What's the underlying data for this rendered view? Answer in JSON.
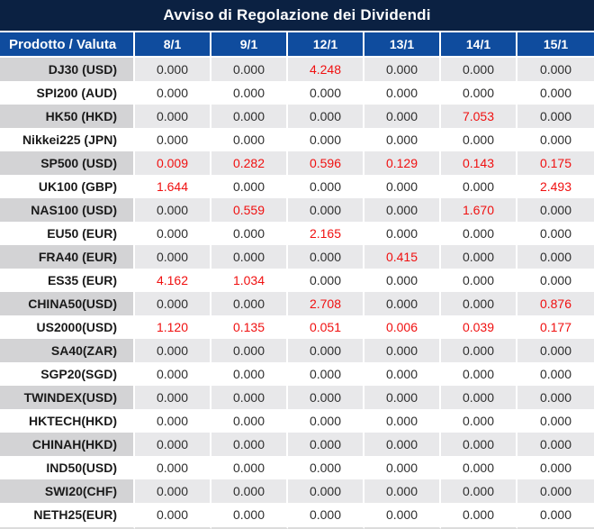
{
  "title": "Avviso di Regolazione dei Dividendi",
  "table": {
    "product_header": "Prodotto / Valuta",
    "date_headers": [
      "8/1",
      "9/1",
      "12/1",
      "13/1",
      "14/1",
      "15/1"
    ],
    "rows": [
      {
        "product": "DJ30 (USD)",
        "values": [
          "0.000",
          "0.000",
          "4.248",
          "0.000",
          "0.000",
          "0.000"
        ],
        "red": [
          false,
          false,
          true,
          false,
          false,
          false
        ]
      },
      {
        "product": "SPI200 (AUD)",
        "values": [
          "0.000",
          "0.000",
          "0.000",
          "0.000",
          "0.000",
          "0.000"
        ],
        "red": [
          false,
          false,
          false,
          false,
          false,
          false
        ]
      },
      {
        "product": "HK50 (HKD)",
        "values": [
          "0.000",
          "0.000",
          "0.000",
          "0.000",
          "7.053",
          "0.000"
        ],
        "red": [
          false,
          false,
          false,
          false,
          true,
          false
        ]
      },
      {
        "product": "Nikkei225 (JPN)",
        "values": [
          "0.000",
          "0.000",
          "0.000",
          "0.000",
          "0.000",
          "0.000"
        ],
        "red": [
          false,
          false,
          false,
          false,
          false,
          false
        ]
      },
      {
        "product": "SP500 (USD)",
        "values": [
          "0.009",
          "0.282",
          "0.596",
          "0.129",
          "0.143",
          "0.175"
        ],
        "red": [
          true,
          true,
          true,
          true,
          true,
          true
        ]
      },
      {
        "product": "UK100 (GBP)",
        "values": [
          "1.644",
          "0.000",
          "0.000",
          "0.000",
          "0.000",
          "2.493"
        ],
        "red": [
          true,
          false,
          false,
          false,
          false,
          true
        ]
      },
      {
        "product": "NAS100 (USD)",
        "values": [
          "0.000",
          "0.559",
          "0.000",
          "0.000",
          "1.670",
          "0.000"
        ],
        "red": [
          false,
          true,
          false,
          false,
          true,
          false
        ]
      },
      {
        "product": "EU50 (EUR)",
        "values": [
          "0.000",
          "0.000",
          "2.165",
          "0.000",
          "0.000",
          "0.000"
        ],
        "red": [
          false,
          false,
          true,
          false,
          false,
          false
        ]
      },
      {
        "product": "FRA40 (EUR)",
        "values": [
          "0.000",
          "0.000",
          "0.000",
          "0.415",
          "0.000",
          "0.000"
        ],
        "red": [
          false,
          false,
          false,
          true,
          false,
          false
        ]
      },
      {
        "product": "ES35 (EUR)",
        "values": [
          "4.162",
          "1.034",
          "0.000",
          "0.000",
          "0.000",
          "0.000"
        ],
        "red": [
          true,
          true,
          false,
          false,
          false,
          false
        ]
      },
      {
        "product": "CHINA50(USD)",
        "values": [
          "0.000",
          "0.000",
          "2.708",
          "0.000",
          "0.000",
          "0.876"
        ],
        "red": [
          false,
          false,
          true,
          false,
          false,
          true
        ]
      },
      {
        "product": "US2000(USD)",
        "values": [
          "1.120",
          "0.135",
          "0.051",
          "0.006",
          "0.039",
          "0.177"
        ],
        "red": [
          true,
          true,
          true,
          true,
          true,
          true
        ]
      },
      {
        "product": "SA40(ZAR)",
        "values": [
          "0.000",
          "0.000",
          "0.000",
          "0.000",
          "0.000",
          "0.000"
        ],
        "red": [
          false,
          false,
          false,
          false,
          false,
          false
        ]
      },
      {
        "product": "SGP20(SGD)",
        "values": [
          "0.000",
          "0.000",
          "0.000",
          "0.000",
          "0.000",
          "0.000"
        ],
        "red": [
          false,
          false,
          false,
          false,
          false,
          false
        ]
      },
      {
        "product": "TWINDEX(USD)",
        "values": [
          "0.000",
          "0.000",
          "0.000",
          "0.000",
          "0.000",
          "0.000"
        ],
        "red": [
          false,
          false,
          false,
          false,
          false,
          false
        ]
      },
      {
        "product": "HKTECH(HKD)",
        "values": [
          "0.000",
          "0.000",
          "0.000",
          "0.000",
          "0.000",
          "0.000"
        ],
        "red": [
          false,
          false,
          false,
          false,
          false,
          false
        ]
      },
      {
        "product": "CHINAH(HKD)",
        "values": [
          "0.000",
          "0.000",
          "0.000",
          "0.000",
          "0.000",
          "0.000"
        ],
        "red": [
          false,
          false,
          false,
          false,
          false,
          false
        ]
      },
      {
        "product": "IND50(USD)",
        "values": [
          "0.000",
          "0.000",
          "0.000",
          "0.000",
          "0.000",
          "0.000"
        ],
        "red": [
          false,
          false,
          false,
          false,
          false,
          false
        ]
      },
      {
        "product": "SWI20(CHF)",
        "values": [
          "0.000",
          "0.000",
          "0.000",
          "0.000",
          "0.000",
          "0.000"
        ],
        "red": [
          false,
          false,
          false,
          false,
          false,
          false
        ]
      },
      {
        "product": "NETH25(EUR)",
        "values": [
          "0.000",
          "0.000",
          "0.000",
          "0.000",
          "0.000",
          "0.000"
        ],
        "red": [
          false,
          false,
          false,
          false,
          false,
          false
        ]
      }
    ]
  },
  "colors": {
    "title_bar_bg": "#0B2142",
    "header_bg": "#0F4C9E",
    "row_alt_label_bg": "#D3D3D5",
    "row_alt_data_bg": "#E8E8EA",
    "value_color": "#2E2E2E",
    "product_color": "#1A1A1A",
    "red_value_color": "#F01010",
    "separator_color": "#FFFFFF",
    "bottom_border_color": "#DCDCDC"
  }
}
